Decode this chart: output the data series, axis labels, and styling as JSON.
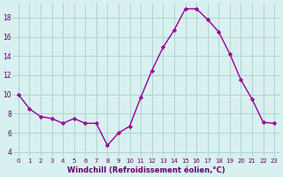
{
  "x": [
    0,
    1,
    2,
    3,
    4,
    5,
    6,
    7,
    8,
    9,
    10,
    11,
    12,
    13,
    14,
    15,
    16,
    17,
    18,
    19,
    20,
    21,
    22,
    23
  ],
  "y": [
    10,
    8.5,
    7.7,
    7.5,
    7.0,
    7.5,
    7.0,
    7.0,
    4.7,
    6.0,
    6.7,
    9.7,
    12.5,
    14.9,
    16.7,
    18.9,
    18.9,
    17.8,
    16.5,
    14.2,
    11.5,
    9.5,
    7.1,
    7.0
  ],
  "line_color": "#990099",
  "marker": "D",
  "marker_size": 2.2,
  "linewidth": 1.0,
  "bg_color": "#d8f0f0",
  "grid_color": "#aacfcf",
  "xlabel": "Windchill (Refroidissement éolien,°C)",
  "xlabel_color": "#660066",
  "tick_color": "#660066",
  "xlim": [
    -0.5,
    23.5
  ],
  "ylim": [
    3.5,
    19.5
  ],
  "yticks": [
    4,
    6,
    8,
    10,
    12,
    14,
    16,
    18
  ],
  "xticks": [
    0,
    1,
    2,
    3,
    4,
    5,
    6,
    7,
    8,
    9,
    10,
    11,
    12,
    13,
    14,
    15,
    16,
    17,
    18,
    19,
    20,
    21,
    22,
    23
  ],
  "xtick_labels": [
    "0",
    "1",
    "2",
    "3",
    "4",
    "5",
    "6",
    "7",
    "8",
    "9",
    "10",
    "11",
    "12",
    "13",
    "14",
    "15",
    "16",
    "17",
    "18",
    "19",
    "20",
    "21",
    "22",
    "23"
  ],
  "tick_fontsize": 5.0,
  "xlabel_fontsize": 6.0,
  "ytick_fontsize": 5.5
}
